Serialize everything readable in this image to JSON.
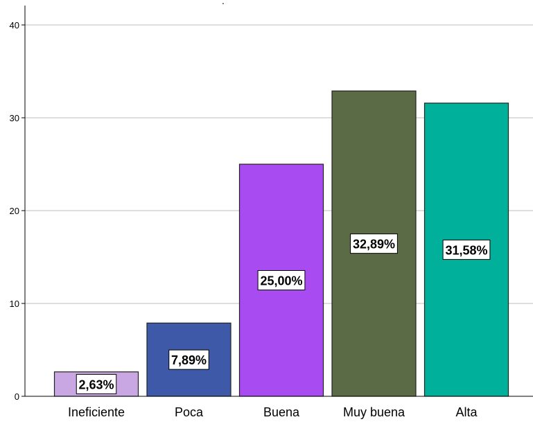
{
  "chart_data": {
    "type": "bar",
    "categories": [
      "Ineficiente",
      "Poca",
      "Buena",
      "Muy buena",
      "Alta"
    ],
    "values": [
      2.63,
      7.89,
      25.0,
      32.89,
      31.58
    ],
    "data_labels": [
      "2,63%",
      "7,89%",
      "25,00%",
      "32,89%",
      "31,58%"
    ],
    "colors": [
      "#c9a7e3",
      "#3e59a8",
      "#a84bf0",
      "#5a6b45",
      "#00b09b"
    ],
    "yticks": [
      0,
      10,
      20,
      30,
      40
    ],
    "ylim": [
      0,
      40
    ],
    "grid": true,
    "title_fragment": "."
  }
}
